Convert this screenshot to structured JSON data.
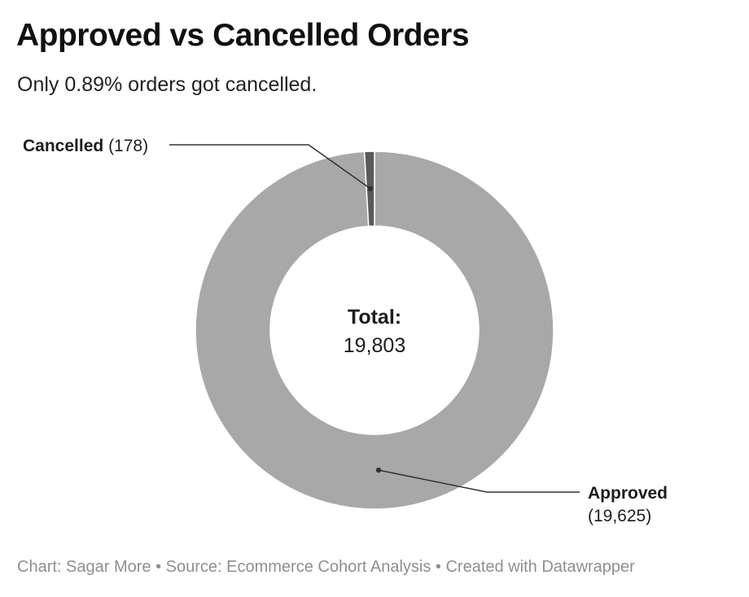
{
  "title": "Approved vs Cancelled Orders",
  "subtitle": "Only 0.89% orders got cancelled.",
  "chart_data": {
    "type": "pie",
    "style": "donut",
    "title": "Approved vs Cancelled Orders",
    "subtitle": "Only 0.89% orders got cancelled.",
    "slices": [
      {
        "name": "Approved",
        "value": 19625,
        "display_value": "(19,625)",
        "color": "#a8a8a8"
      },
      {
        "name": "Cancelled",
        "value": 178,
        "display_value": "(178)",
        "color": "#5a5a5a"
      }
    ],
    "center_label": "Total:",
    "center_value": "19,803"
  },
  "colors": {
    "stroke": "#ffffff",
    "leader": "#333333",
    "text": "#1d1d1d",
    "footer": "#8f8f8f"
  },
  "footer": {
    "chart_credit": "Chart: Sagar More",
    "source": "Source: Ecommerce Cohort Analysis",
    "created_with": "Created with Datawrapper",
    "separator": "•"
  }
}
